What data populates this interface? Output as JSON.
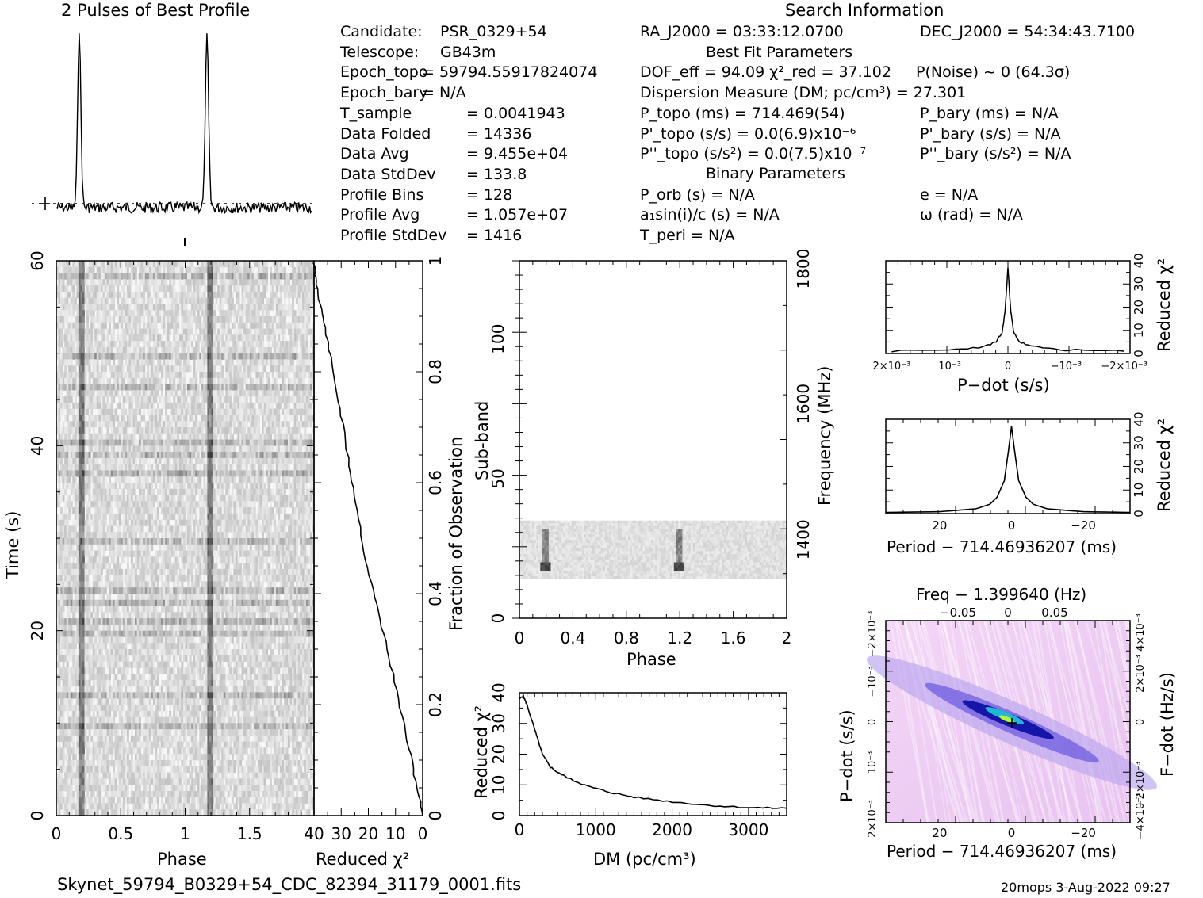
{
  "header": {
    "profile_title": "2 Pulses of Best Profile",
    "search_title": "Search Information",
    "best_fit_title": "Best Fit Parameters",
    "binary_title": "Binary Parameters"
  },
  "info_left": [
    {
      "label": "Candidate:",
      "value": "PSR_0329+54"
    },
    {
      "label": "Telescope:",
      "value": "GB43m"
    },
    {
      "label": "Epoch_topo",
      "value": "= 59794.55917824074"
    },
    {
      "label": "Epoch_bary",
      "value": "= N/A"
    },
    {
      "label": "T_sample",
      "value": "=  0.0041943"
    },
    {
      "label": "Data Folded",
      "value": "=  14336"
    },
    {
      "label": "Data Avg",
      "value": "=  9.455e+04"
    },
    {
      "label": "Data StdDev",
      "value": "=  133.8"
    },
    {
      "label": "Profile Bins",
      "value": "=  128"
    },
    {
      "label": "Profile Avg",
      "value": "=  1.057e+07"
    },
    {
      "label": "Profile StdDev",
      "value": "=  1416"
    }
  ],
  "info_mid": {
    "ra": "RA_J2000 = 03:33:12.0700",
    "dec": "DEC_J2000 = 54:34:43.7100",
    "dof": "DOF_eff = 94.09  χ²_red = 37.102",
    "pnoise": "P(Noise) ~ 0   (64.3σ)",
    "dm": "Dispersion Measure (DM; pc/cm³) = 27.301",
    "ptopo": "P_topo (ms) =  714.469(54)",
    "pdtopo": "P'_topo (s/s) = 0.0(6.9)x10⁻⁶",
    "pddtopo": "P''_topo (s/s²) = 0.0(7.5)x10⁻⁷",
    "pbary": "P_bary (ms) = N/A",
    "pdbary": "P'_bary (s/s) = N/A",
    "pddbary": "P''_bary (s/s²) = N/A",
    "porb": "P_orb (s) = N/A",
    "a1sini": "a₁sin(i)/c (s) = N/A",
    "tperi": "T_peri = N/A",
    "ecc": "e = N/A",
    "omega": "ω (rad) = N/A"
  },
  "footer": {
    "filename": "Skynet_59794_B0329+54_CDC_82394_31179_0001.fits",
    "stamp": "20mops  3-Aug-2022 09:27"
  },
  "chart_data": [
    {
      "type": "line",
      "name": "profile",
      "title": "2 Pulses of Best Profile",
      "xlim": [
        0,
        2
      ],
      "peaks_phase": [
        0.18,
        1.18
      ]
    },
    {
      "type": "heatmap",
      "name": "time-phase",
      "xlabel": "Phase",
      "ylabel": "Time (s)",
      "xlim": [
        0,
        2
      ],
      "ylim": [
        0,
        60
      ],
      "xticks": [
        "0",
        "0.5",
        "1",
        "1.5"
      ],
      "yticks": [
        "0",
        "20",
        "40",
        "60"
      ]
    },
    {
      "type": "line",
      "name": "reduced-chi2-vs-fraction",
      "xlabel": "Reduced χ²",
      "ylabel": "Fraction of Observation",
      "xlim": [
        40,
        0
      ],
      "ylim": [
        0,
        1
      ],
      "xticks": [
        "40",
        "30",
        "20",
        "10",
        "0"
      ],
      "yticks": [
        "0",
        "0.2",
        "0.4",
        "0.6",
        "0.8",
        "1"
      ],
      "x": [
        40,
        39.5,
        38,
        36,
        33,
        30,
        27,
        24,
        21,
        17,
        13,
        9,
        5,
        2,
        0
      ],
      "y": [
        1,
        0.97,
        0.93,
        0.88,
        0.8,
        0.72,
        0.63,
        0.55,
        0.46,
        0.38,
        0.3,
        0.21,
        0.12,
        0.05,
        0
      ]
    },
    {
      "type": "heatmap",
      "name": "subband-phase",
      "xlabel": "Phase",
      "ylabel": "Sub-band",
      "y2label": "Frequency (MHz)",
      "xlim": [
        0,
        2
      ],
      "ylim": [
        0,
        128
      ],
      "xticks": [
        "0",
        "0.4",
        "0.8",
        "1.2",
        "1.6",
        "2"
      ],
      "yticks": [
        "0",
        "50",
        "100"
      ],
      "y2ticks": [
        "1400",
        "1600",
        "1800"
      ]
    },
    {
      "type": "line",
      "name": "dm-curve",
      "xlabel": "DM (pc/cm³)",
      "ylabel": "Reduced χ²",
      "xlim": [
        0,
        3500
      ],
      "ylim": [
        0,
        40
      ],
      "xticks": [
        "0",
        "1000",
        "2000",
        "3000"
      ],
      "yticks": [
        "0",
        "10",
        "20",
        "30",
        "40"
      ],
      "x": [
        0,
        50,
        100,
        200,
        300,
        400,
        500,
        700,
        900,
        1200,
        1500,
        2000,
        2500,
        3000,
        3500
      ],
      "y": [
        38,
        39,
        36,
        28,
        20,
        16,
        14,
        11.5,
        9.5,
        7.5,
        6,
        4.5,
        3.3,
        2.6,
        2.4
      ]
    },
    {
      "type": "line",
      "name": "pdot-curve",
      "xlabel": "P−dot (s/s)",
      "ylabel": "Reduced χ²",
      "ylim": [
        0,
        40
      ],
      "xticks": [
        "2×10⁻³",
        "10⁻³",
        "0",
        "−10⁻³",
        "−2×10⁻³"
      ],
      "yticks": [
        "0",
        "10",
        "20",
        "30",
        "40"
      ],
      "x": [
        0.002,
        0.001,
        0.0004,
        0.0002,
        0.0001,
        5e-05,
        0,
        -5e-05,
        -0.0001,
        -0.0002,
        -0.0004,
        -0.001,
        -0.002
      ],
      "y": [
        1,
        1.5,
        3,
        5,
        9,
        18,
        37,
        18,
        9,
        5,
        3,
        1.5,
        1
      ]
    },
    {
      "type": "line",
      "name": "period-curve",
      "xlabel": "Period − 714.46936207 (ms)",
      "ylabel": "Reduced χ²",
      "ylim": [
        0,
        40
      ],
      "xticks": [
        "20",
        "0",
        "−20"
      ],
      "yticks": [
        "0",
        "10",
        "20",
        "30",
        "40"
      ],
      "x": [
        35,
        20,
        10,
        6,
        4,
        2,
        1,
        0,
        -1,
        -2,
        -4,
        -6,
        -10,
        -20,
        -33
      ],
      "y": [
        0.5,
        0.8,
        2,
        4,
        7,
        14,
        25,
        37,
        25,
        14,
        7,
        4,
        2,
        0.8,
        0.5
      ]
    },
    {
      "type": "heatmap",
      "name": "period-pdot",
      "title": "Freq − 1.399640 (Hz)",
      "xlabel": "Period − 714.46936207 (ms)",
      "ylabel": "P−dot (s/s)",
      "y2label": "F−dot (Hz/s)",
      "xticks": [
        "20",
        "0",
        "−20"
      ],
      "x2ticks": [
        "−0.05",
        "0",
        "0.05"
      ],
      "yticks": [
        "2×10⁻³",
        "10⁻³",
        "0",
        "−10⁻³",
        "−2×10⁻³"
      ],
      "y2ticks": [
        "−4×10⁻³",
        "−2×10⁻³",
        "0",
        "2×10⁻³",
        "4×10⁻³"
      ]
    }
  ]
}
